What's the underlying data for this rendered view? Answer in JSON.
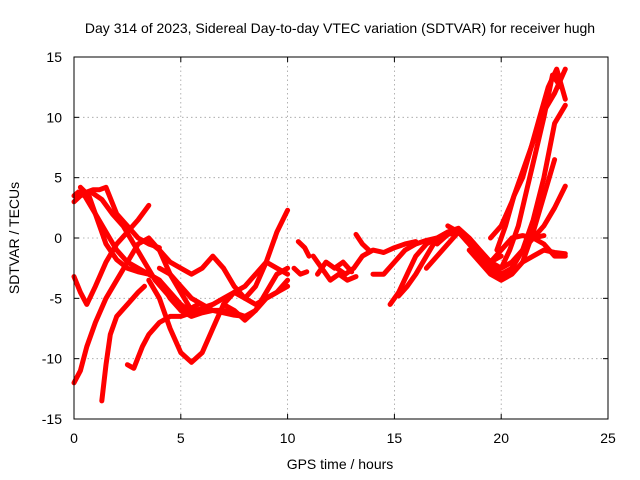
{
  "chart_data": {
    "type": "line",
    "title": "Day 314 of 2023, Sidereal Day-to-day VTEC variation (SDTVAR) for receiver hugh",
    "xlabel": "GPS time / hours",
    "ylabel": "SDTVAR / TECUs",
    "xlim": [
      0,
      25
    ],
    "ylim": [
      -15,
      15
    ],
    "xticks": [
      "0",
      "5",
      "10",
      "15",
      "20",
      "25"
    ],
    "yticks": [
      "-15",
      "-10",
      "-5",
      "0",
      "5",
      "10",
      "15"
    ],
    "xtick_values": [
      0,
      5,
      10,
      15,
      20,
      25
    ],
    "ytick_values": [
      -15,
      -10,
      -5,
      0,
      5,
      10,
      15
    ],
    "grid": true,
    "color": "#ff0000",
    "series": [
      {
        "x": [
          0.0,
          0.2,
          0.5,
          1.0,
          1.5,
          2.0,
          2.5,
          3.0,
          3.5,
          4.0,
          4.5,
          5.0,
          5.5,
          6.0,
          6.5
        ],
        "y": [
          3.5,
          3.8,
          3.5,
          2.0,
          0.5,
          -1.0,
          -2.0,
          -2.5,
          -3.0,
          -3.5,
          -5.0,
          -6.0,
          -6.5,
          -6.2,
          -6.0
        ]
      },
      {
        "x": [
          0.0,
          0.3,
          0.8,
          1.3,
          1.8,
          2.3,
          2.8,
          3.3,
          3.8,
          4.3,
          4.8,
          5.3,
          5.8
        ],
        "y": [
          3.0,
          3.5,
          3.8,
          3.2,
          2.0,
          1.0,
          -0.5,
          -2.0,
          -3.5,
          -4.5,
          -5.5,
          -6.0,
          -5.5
        ]
      },
      {
        "x": [
          0.3,
          0.7,
          1.2,
          1.5,
          2.0,
          2.5,
          3.0,
          3.5,
          4.0,
          4.5,
          5.0,
          5.5
        ],
        "y": [
          4.2,
          3.5,
          1.0,
          -0.5,
          -1.8,
          -2.5,
          -2.8,
          -3.0,
          -3.5,
          -4.5,
          -5.5,
          -6.2
        ]
      },
      {
        "x": [
          0.6,
          0.9,
          1.2,
          1.5,
          2.0,
          2.5,
          3.0,
          3.5,
          4.0
        ],
        "y": [
          3.8,
          4.0,
          4.0,
          4.2,
          2.0,
          1.0,
          0.0,
          -0.5,
          -0.8
        ]
      },
      {
        "x": [
          0.0,
          0.3,
          0.6,
          1.0,
          1.5,
          2.0,
          2.5,
          3.0,
          3.5
        ],
        "y": [
          -3.2,
          -4.5,
          -5.5,
          -4.0,
          -2.0,
          -0.5,
          0.5,
          1.5,
          2.7
        ]
      },
      {
        "x": [
          0.0,
          0.3,
          0.6,
          1.0,
          1.5,
          2.0,
          2.5,
          3.0,
          3.5,
          4.0,
          4.5,
          5.0,
          5.5,
          6.0,
          6.5,
          7.0,
          7.5,
          8.0
        ],
        "y": [
          -12.0,
          -11.0,
          -9.0,
          -7.0,
          -5.0,
          -3.5,
          -2.0,
          -0.5,
          0.0,
          -1.0,
          -3.0,
          -4.5,
          -6.0,
          -6.0,
          -6.0,
          -6.2,
          -6.4,
          -6.5
        ]
      },
      {
        "x": [
          1.3,
          1.5,
          1.7,
          2.0,
          2.5,
          3.0,
          3.3
        ],
        "y": [
          -13.5,
          -10.5,
          -8.0,
          -6.5,
          -5.5,
          -4.5,
          -4.0
        ]
      },
      {
        "x": [
          2.5,
          2.8,
          3.2,
          3.5,
          4.0,
          4.5,
          5.0,
          5.5,
          6.0
        ],
        "y": [
          -10.5,
          -10.8,
          -9.0,
          -8.0,
          -7.0,
          -6.5,
          -6.5,
          -6.2,
          -6.0
        ]
      },
      {
        "x": [
          3.5,
          4.0,
          4.5,
          5.0,
          5.5,
          6.0,
          6.5,
          7.0,
          7.5,
          8.0,
          8.5,
          9.0,
          9.5,
          10.0
        ],
        "y": [
          -3.5,
          -5.0,
          -7.5,
          -9.5,
          -10.3,
          -9.5,
          -7.5,
          -5.5,
          -4.5,
          -5.0,
          -5.5,
          -5.0,
          -4.5,
          -4.0
        ]
      },
      {
        "x": [
          3.5,
          4.0,
          4.5,
          5.0,
          5.5,
          6.0,
          6.5,
          7.0,
          7.5,
          8.0,
          8.5,
          9.0,
          9.5,
          10.0
        ],
        "y": [
          -0.3,
          -1.0,
          -2.0,
          -2.5,
          -3.0,
          -2.5,
          -1.5,
          -2.5,
          -4.0,
          -5.0,
          -4.0,
          -2.0,
          0.5,
          2.3
        ]
      },
      {
        "x": [
          4.0,
          4.5,
          5.0,
          5.5,
          6.0,
          6.5,
          7.0,
          7.5,
          8.0,
          8.5,
          9.0,
          9.5,
          10.0
        ],
        "y": [
          -2.5,
          -3.0,
          -4.0,
          -5.0,
          -5.5,
          -6.0,
          -6.0,
          -6.2,
          -6.5,
          -6.0,
          -5.0,
          -4.5,
          -3.5
        ]
      },
      {
        "x": [
          5.0,
          5.5,
          6.0,
          6.5,
          7.0,
          7.5,
          8.0,
          8.5,
          9.0,
          9.5,
          10.0
        ],
        "y": [
          -6.0,
          -6.2,
          -5.8,
          -5.5,
          -5.0,
          -4.5,
          -4.0,
          -3.0,
          -2.0,
          -2.5,
          -3.0
        ]
      },
      {
        "x": [
          7.0,
          7.5,
          8.0,
          8.5,
          9.0,
          9.5,
          10.0
        ],
        "y": [
          -5.5,
          -6.0,
          -6.8,
          -6.0,
          -4.5,
          -3.0,
          -2.5
        ]
      },
      {
        "x": [
          10.5,
          10.8,
          11.0
        ],
        "y": [
          -0.3,
          -0.8,
          -1.5
        ]
      },
      {
        "x": [
          10.3,
          10.6,
          10.9
        ],
        "y": [
          -2.5,
          -3.0,
          -2.8
        ]
      },
      {
        "x": [
          11.2,
          11.6,
          12.0,
          12.4,
          12.8,
          13.2
        ],
        "y": [
          -1.5,
          -2.5,
          -3.5,
          -3.0,
          -3.5,
          -3.2
        ]
      },
      {
        "x": [
          11.4,
          11.8,
          12.2,
          12.6,
          13.0
        ],
        "y": [
          -3.0,
          -2.0,
          -2.5,
          -2.0,
          -2.8
        ]
      },
      {
        "x": [
          12.3,
          12.7,
          13.1,
          13.5,
          14.0,
          14.5,
          15.0,
          15.5,
          16.0
        ],
        "y": [
          -2.5,
          -3.0,
          -2.5,
          -1.5,
          -1.0,
          -1.2,
          -0.8,
          -0.5,
          -0.3
        ]
      },
      {
        "x": [
          13.2,
          13.5,
          13.8
        ],
        "y": [
          0.3,
          -0.5,
          -1.0
        ]
      },
      {
        "x": [
          14.0,
          14.5,
          15.0,
          15.5,
          16.0,
          16.5,
          17.0
        ],
        "y": [
          -3.0,
          -3.0,
          -2.0,
          -1.0,
          -0.5,
          -0.2,
          0.0
        ]
      },
      {
        "x": [
          14.8,
          15.2,
          15.6,
          16.0,
          16.5,
          17.0,
          17.5,
          18.0,
          18.5,
          19.0,
          19.5,
          20.0
        ],
        "y": [
          -5.5,
          -4.5,
          -3.0,
          -1.5,
          -0.5,
          0.0,
          0.5,
          0.5,
          -0.5,
          -1.5,
          -2.0,
          -1.5
        ]
      },
      {
        "x": [
          15.2,
          15.6,
          16.0,
          16.5,
          17.0,
          17.5,
          18.0,
          18.5,
          19.0,
          19.5,
          20.0,
          20.5,
          21.0,
          21.5,
          22.0
        ],
        "y": [
          -4.8,
          -4.0,
          -3.0,
          -1.5,
          0.0,
          0.5,
          0.8,
          0.0,
          -1.0,
          -2.0,
          -2.5,
          -2.0,
          -1.0,
          0.0,
          0.2
        ]
      },
      {
        "x": [
          16.5,
          17.0,
          17.5,
          18.0,
          18.5,
          19.0,
          19.5,
          20.0,
          20.5
        ],
        "y": [
          -2.5,
          -1.5,
          -0.5,
          0.5,
          0.0,
          -1.0,
          -2.0,
          -3.0,
          -2.5
        ]
      },
      {
        "x": [
          17.0,
          17.5,
          18.0,
          18.5,
          19.0,
          19.5,
          20.0,
          20.5,
          21.0,
          21.5,
          22.0,
          22.5,
          23.0
        ],
        "y": [
          -0.5,
          0.3,
          0.5,
          -0.5,
          -1.5,
          -2.0,
          -1.0,
          0.0,
          0.2,
          0.0,
          -0.5,
          -1.5,
          -1.5
        ]
      },
      {
        "x": [
          17.5,
          18.0,
          18.5,
          19.0,
          19.5,
          20.0,
          20.5,
          21.0,
          21.5,
          22.0,
          22.5,
          23.0
        ],
        "y": [
          1.0,
          0.5,
          -0.5,
          -1.5,
          -2.5,
          -3.2,
          -2.5,
          -1.0,
          0.0,
          1.0,
          2.5,
          4.3
        ]
      },
      {
        "x": [
          18.5,
          19.0,
          19.5,
          20.0,
          20.5,
          21.0,
          21.5,
          22.0,
          22.5,
          23.0
        ],
        "y": [
          -1.0,
          -2.0,
          -3.0,
          -3.5,
          -3.0,
          -2.0,
          -1.5,
          -1.0,
          -1.2,
          -1.3
        ]
      },
      {
        "x": [
          19.5,
          20.0,
          20.5,
          21.0,
          21.5,
          22.0,
          22.5,
          23.0
        ],
        "y": [
          0.0,
          1.0,
          3.0,
          5.5,
          8.0,
          10.5,
          12.0,
          14.0
        ]
      },
      {
        "x": [
          19.8,
          20.2,
          20.6,
          21.0,
          21.4,
          21.8,
          22.2,
          22.6,
          23.0
        ],
        "y": [
          -1.0,
          1.0,
          3.5,
          5.0,
          7.5,
          10.0,
          12.5,
          14.0,
          11.5
        ]
      },
      {
        "x": [
          20.0,
          20.4,
          20.8,
          21.2,
          21.6,
          22.0,
          22.4,
          22.8
        ],
        "y": [
          -2.5,
          -1.0,
          1.0,
          4.0,
          7.0,
          10.0,
          13.5,
          12.5
        ]
      },
      {
        "x": [
          20.5,
          21.0,
          21.5,
          22.0,
          22.5,
          23.0
        ],
        "y": [
          -2.5,
          -1.0,
          1.5,
          5.0,
          9.5,
          11.0
        ]
      },
      {
        "x": [
          21.0,
          21.5,
          22.0,
          22.5
        ],
        "y": [
          -2.0,
          0.5,
          3.5,
          6.5
        ]
      }
    ]
  }
}
